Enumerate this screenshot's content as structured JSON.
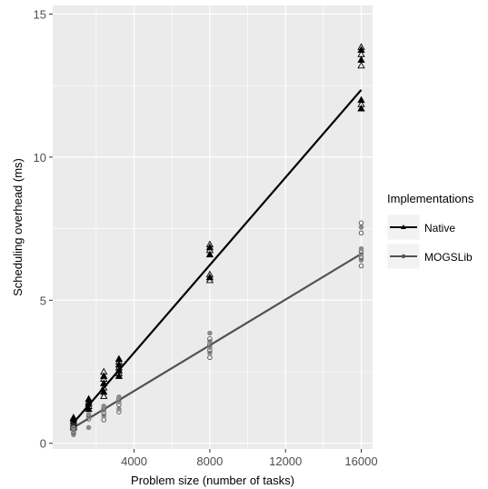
{
  "chart_data": {
    "type": "scatter",
    "xlabel": "Problem size (number of tasks)",
    "ylabel": "Scheduling overhead (ms)",
    "xlim": [
      -300,
      16600
    ],
    "ylim": [
      -0.2,
      15.3
    ],
    "xticks": [
      4000,
      8000,
      12000,
      16000
    ],
    "xtick_labels": [
      "4000",
      "8000",
      "12000",
      "16000"
    ],
    "yticks": [
      0,
      5,
      10,
      15
    ],
    "ytick_labels": [
      "0",
      "5",
      "10",
      "15"
    ],
    "grid": true,
    "legend": {
      "title": "Implementations",
      "position": "right"
    },
    "series": [
      {
        "name": "Native",
        "color": "#000000",
        "marker": "triangle",
        "points": [
          [
            800,
            0.55
          ],
          [
            800,
            0.62
          ],
          [
            800,
            0.7
          ],
          [
            800,
            0.78
          ],
          [
            800,
            0.85
          ],
          [
            800,
            0.9
          ],
          [
            1600,
            1.2
          ],
          [
            1600,
            1.3
          ],
          [
            1600,
            1.38
          ],
          [
            1600,
            1.45
          ],
          [
            1600,
            1.55
          ],
          [
            2400,
            1.65
          ],
          [
            2400,
            1.8
          ],
          [
            2400,
            1.95
          ],
          [
            2400,
            2.1
          ],
          [
            2400,
            2.25
          ],
          [
            2400,
            2.35
          ],
          [
            2400,
            2.5
          ],
          [
            3200,
            2.35
          ],
          [
            3200,
            2.45
          ],
          [
            3200,
            2.55
          ],
          [
            3200,
            2.65
          ],
          [
            3200,
            2.75
          ],
          [
            3200,
            2.85
          ],
          [
            3200,
            2.95
          ],
          [
            8000,
            5.7
          ],
          [
            8000,
            5.8
          ],
          [
            8000,
            5.9
          ],
          [
            8000,
            6.6
          ],
          [
            8000,
            6.75
          ],
          [
            8000,
            6.85
          ],
          [
            8000,
            6.95
          ],
          [
            16000,
            11.7
          ],
          [
            16000,
            11.85
          ],
          [
            16000,
            12.0
          ],
          [
            16000,
            13.2
          ],
          [
            16000,
            13.4
          ],
          [
            16000,
            13.6
          ],
          [
            16000,
            13.75
          ],
          [
            16000,
            13.85
          ]
        ],
        "fit": [
          [
            800,
            0.72
          ],
          [
            16000,
            12.35
          ]
        ]
      },
      {
        "name": "MOGSLib",
        "color": "#525252",
        "marker": "circle",
        "points": [
          [
            800,
            0.3
          ],
          [
            800,
            0.38
          ],
          [
            800,
            0.45
          ],
          [
            800,
            0.5
          ],
          [
            800,
            0.55
          ],
          [
            800,
            0.62
          ],
          [
            1600,
            0.55
          ],
          [
            1600,
            0.85
          ],
          [
            1600,
            0.92
          ],
          [
            1600,
            0.98
          ],
          [
            1600,
            1.02
          ],
          [
            2400,
            0.82
          ],
          [
            2400,
            0.95
          ],
          [
            2400,
            1.05
          ],
          [
            2400,
            1.15
          ],
          [
            2400,
            1.22
          ],
          [
            2400,
            1.3
          ],
          [
            3200,
            1.1
          ],
          [
            3200,
            1.2
          ],
          [
            3200,
            1.35
          ],
          [
            3200,
            1.45
          ],
          [
            3200,
            1.55
          ],
          [
            3200,
            1.62
          ],
          [
            8000,
            3.0
          ],
          [
            8000,
            3.15
          ],
          [
            8000,
            3.25
          ],
          [
            8000,
            3.35
          ],
          [
            8000,
            3.45
          ],
          [
            8000,
            3.55
          ],
          [
            8000,
            3.65
          ],
          [
            8000,
            3.85
          ],
          [
            16000,
            6.2
          ],
          [
            16000,
            6.4
          ],
          [
            16000,
            6.5
          ],
          [
            16000,
            6.6
          ],
          [
            16000,
            6.7
          ],
          [
            16000,
            6.8
          ],
          [
            16000,
            7.35
          ],
          [
            16000,
            7.55
          ],
          [
            16000,
            7.7
          ]
        ],
        "fit": [
          [
            800,
            0.55
          ],
          [
            16000,
            6.62
          ]
        ]
      }
    ]
  }
}
